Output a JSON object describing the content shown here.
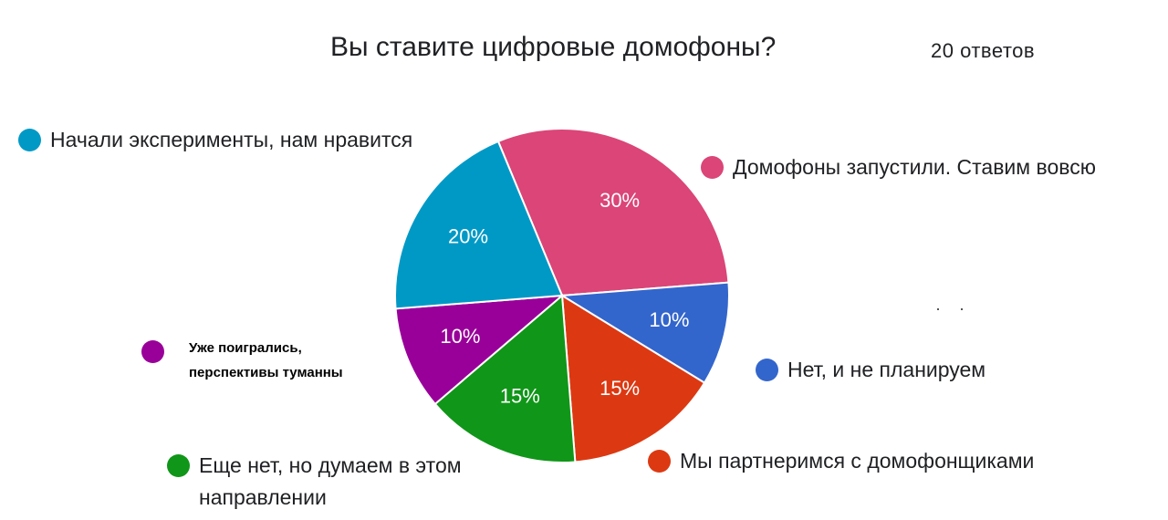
{
  "header": {
    "title": "Вы ставите цифровые домофоны?",
    "responses": "20 ответов"
  },
  "chart_data": {
    "type": "pie",
    "title": "Вы ставите цифровые домофоны?",
    "slices": [
      {
        "label": "Домофоны запустили. Ставим вовсю",
        "value": 30,
        "display": "30%",
        "color": "#DB4578"
      },
      {
        "label": "Нет, и не планируем",
        "value": 10,
        "display": "10%",
        "color": "#3366CC"
      },
      {
        "label": "Мы партнеримся с домофонщиками",
        "value": 15,
        "display": "15%",
        "color": "#DC3912"
      },
      {
        "label": "Еще нет, но думаем в этом направлении",
        "value": 15,
        "display": "15%",
        "color": "#109618"
      },
      {
        "label": "Уже поигрались, перспективы туманны",
        "value": 10,
        "display": "10%",
        "color": "#990099"
      },
      {
        "label": "Начали эксперименты, нам нравится",
        "value": 20,
        "display": "20%",
        "color": "#0099C6"
      }
    ]
  }
}
